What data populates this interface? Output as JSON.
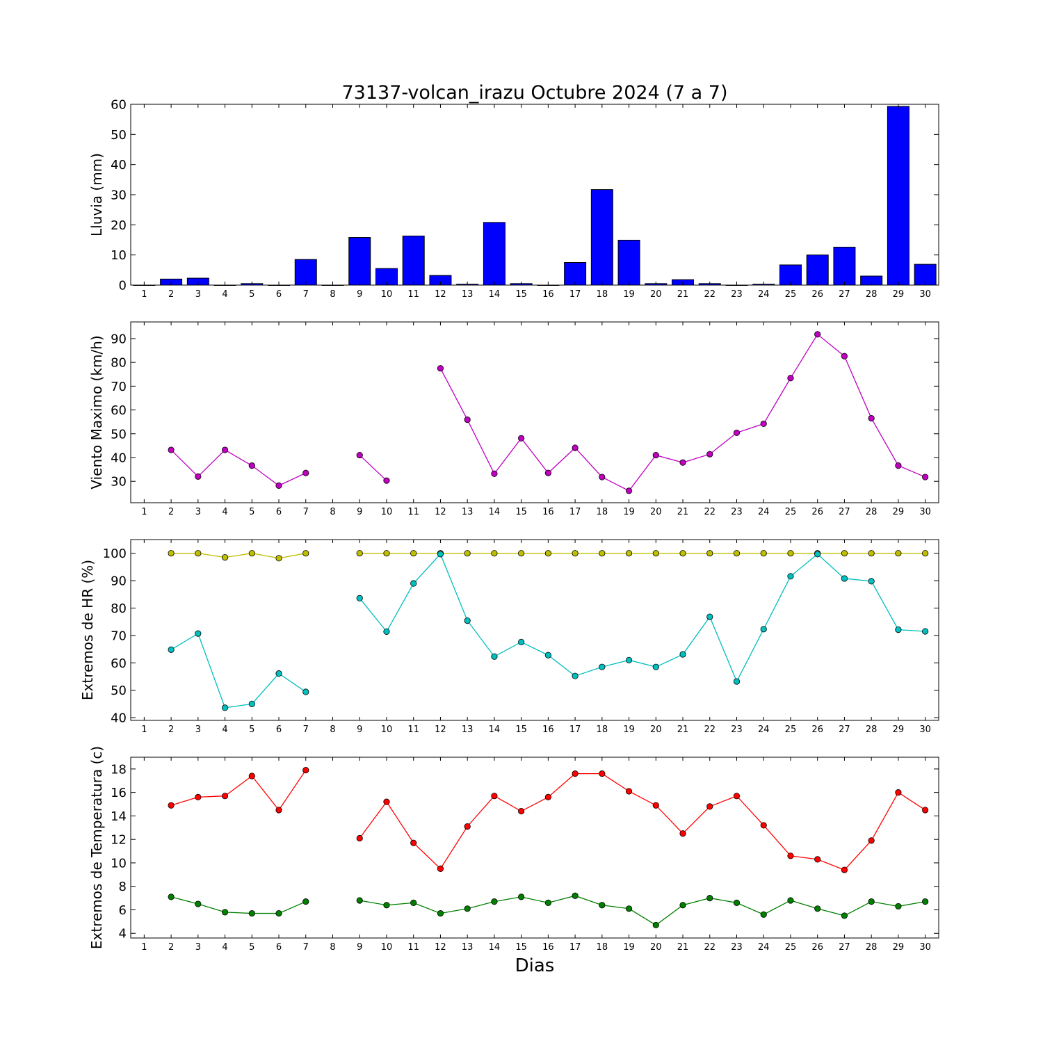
{
  "title": "73137-volcan_irazu Octubre 2024  (7 a 7)",
  "xlabel": "Dias",
  "chart_data": [
    {
      "type": "bar",
      "ylabel": "Lluvia (mm)",
      "ylim": [
        0,
        60
      ],
      "yticks": [
        0,
        10,
        20,
        30,
        40,
        50,
        60
      ],
      "x": [
        1,
        2,
        3,
        4,
        5,
        6,
        7,
        8,
        9,
        10,
        11,
        12,
        13,
        14,
        15,
        16,
        17,
        18,
        19,
        20,
        21,
        22,
        23,
        24,
        25,
        26,
        27,
        28,
        29,
        30
      ],
      "series": [
        {
          "color": "#0000ff",
          "values": [
            0,
            2.0,
            2.3,
            0,
            0.5,
            0,
            8.5,
            0,
            15.8,
            5.5,
            16.3,
            3.2,
            0.3,
            20.8,
            0.5,
            0,
            7.5,
            31.7,
            14.9,
            0.5,
            1.8,
            0.5,
            0,
            0.3,
            6.7,
            10.0,
            12.6,
            3.0,
            59.3,
            6.9
          ]
        }
      ]
    },
    {
      "type": "line",
      "ylabel": "Viento Maximo (km/h)",
      "ylim": [
        21,
        97
      ],
      "yticks": [
        30,
        40,
        50,
        60,
        70,
        80,
        90
      ],
      "x": [
        1,
        2,
        3,
        4,
        5,
        6,
        7,
        8,
        9,
        10,
        11,
        12,
        13,
        14,
        15,
        16,
        17,
        18,
        19,
        20,
        21,
        22,
        23,
        24,
        25,
        26,
        27,
        28,
        29,
        30
      ],
      "series": [
        {
          "color": "#bf00bf",
          "values": [
            null,
            43.2,
            32.0,
            43.2,
            36.6,
            28.2,
            33.5,
            null,
            41.0,
            30.3,
            null,
            77.5,
            55.9,
            33.2,
            48.1,
            33.5,
            44.1,
            31.8,
            26.0,
            41.0,
            37.9,
            41.4,
            50.4,
            54.2,
            73.4,
            91.8,
            82.6,
            56.5,
            36.6,
            31.8
          ]
        }
      ]
    },
    {
      "type": "line",
      "ylabel": "Extremos de HR (%)",
      "ylim": [
        39,
        105
      ],
      "yticks": [
        40,
        50,
        60,
        70,
        80,
        90,
        100
      ],
      "x": [
        1,
        2,
        3,
        4,
        5,
        6,
        7,
        8,
        9,
        10,
        11,
        12,
        13,
        14,
        15,
        16,
        17,
        18,
        19,
        20,
        21,
        22,
        23,
        24,
        25,
        26,
        27,
        28,
        29,
        30
      ],
      "series": [
        {
          "color": "#bfbf00",
          "values": [
            null,
            100,
            100,
            98.5,
            100,
            98.2,
            100,
            null,
            100,
            100,
            100,
            100,
            100,
            100,
            100,
            100,
            100,
            100,
            100,
            100,
            100,
            100,
            100,
            100,
            100,
            100,
            100,
            100,
            100,
            100
          ]
        },
        {
          "color": "#00bfbf",
          "values": [
            null,
            64.8,
            70.7,
            43.6,
            45.0,
            56.1,
            49.4,
            null,
            83.6,
            71.4,
            89.0,
            99.7,
            75.4,
            62.3,
            67.6,
            62.8,
            55.2,
            58.5,
            61.0,
            58.5,
            63.1,
            76.8,
            53.2,
            72.3,
            91.6,
            99.7,
            90.8,
            89.8,
            72.1,
            71.5
          ]
        }
      ]
    },
    {
      "type": "line",
      "ylabel": "Extremos de Temperatura (c)",
      "ylim": [
        3.6,
        19
      ],
      "yticks": [
        4,
        6,
        8,
        10,
        12,
        14,
        16,
        18
      ],
      "x": [
        1,
        2,
        3,
        4,
        5,
        6,
        7,
        8,
        9,
        10,
        11,
        12,
        13,
        14,
        15,
        16,
        17,
        18,
        19,
        20,
        21,
        22,
        23,
        24,
        25,
        26,
        27,
        28,
        29,
        30
      ],
      "series": [
        {
          "color": "#ff0000",
          "values": [
            null,
            14.9,
            15.6,
            15.7,
            17.4,
            14.5,
            17.9,
            null,
            12.1,
            15.2,
            11.7,
            9.5,
            13.1,
            15.7,
            14.4,
            15.6,
            17.6,
            17.6,
            16.1,
            14.9,
            12.5,
            14.8,
            15.7,
            13.2,
            10.6,
            10.3,
            9.4,
            11.9,
            16.0,
            14.5
          ]
        },
        {
          "color": "#007f00",
          "values": [
            null,
            7.1,
            6.5,
            5.8,
            5.7,
            5.7,
            6.7,
            null,
            6.8,
            6.4,
            6.6,
            5.7,
            6.1,
            6.7,
            7.1,
            6.6,
            7.2,
            6.4,
            6.1,
            4.7,
            6.4,
            7.0,
            6.6,
            5.6,
            6.8,
            6.1,
            5.5,
            6.7,
            6.3,
            6.7
          ]
        }
      ]
    }
  ]
}
